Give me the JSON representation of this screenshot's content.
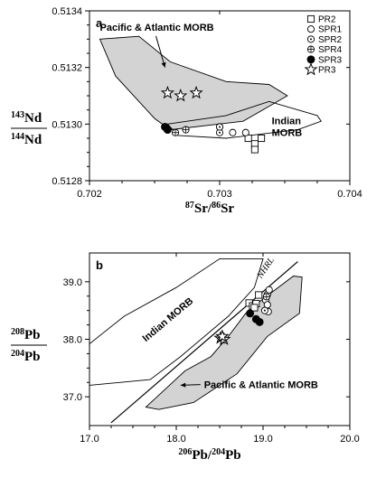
{
  "chart_data": [
    {
      "type": "scatter",
      "panel": "a",
      "xlabel": {
        "pre": "87",
        "main": "Sr/",
        "pre2": "86",
        "main2": "Sr"
      },
      "ylabel": {
        "num_pre": "143",
        "num": "Nd",
        "den_pre": "144",
        "den": "Nd"
      },
      "xlim": [
        0.702,
        0.704
      ],
      "ylim": [
        0.5128,
        0.5134
      ],
      "x_ticks": [
        "0.702",
        "0.703",
        "0.704"
      ],
      "x_tick_values": [
        0.702,
        0.703,
        0.704
      ],
      "y_ticks": [
        "0.5128",
        "0.5130",
        "0.5132",
        "0.5134"
      ],
      "y_tick_values": [
        0.5128,
        0.513,
        0.5132,
        0.5134
      ],
      "legend": [
        {
          "name": "PR2",
          "marker": "square"
        },
        {
          "name": "SPR1",
          "marker": "circle"
        },
        {
          "name": "SPR2",
          "marker": "circle-dot"
        },
        {
          "name": "SPR4",
          "marker": "circle-plus"
        },
        {
          "name": "SPR3",
          "marker": "filled-circle"
        },
        {
          "name": "PR3",
          "marker": "star"
        }
      ],
      "series": [
        {
          "name": "PR2",
          "marker": "square",
          "points": [
            [
              0.70322,
              0.51295
            ],
            [
              0.70327,
              0.51293
            ],
            [
              0.70332,
              0.51295
            ],
            [
              0.70327,
              0.51291
            ]
          ]
        },
        {
          "name": "SPR1",
          "marker": "circle",
          "points": [
            [
              0.703,
              0.51299
            ],
            [
              0.7031,
              0.51297
            ],
            [
              0.7032,
              0.51297
            ]
          ]
        },
        {
          "name": "SPR2",
          "marker": "circle-dot",
          "points": [
            [
              0.703,
              0.51297
            ],
            [
              0.703,
              0.51299
            ]
          ]
        },
        {
          "name": "SPR4",
          "marker": "circle-plus",
          "points": [
            [
              0.70266,
              0.51297
            ],
            [
              0.70274,
              0.51298
            ]
          ]
        },
        {
          "name": "SPR3",
          "marker": "filled-circle",
          "points": [
            [
              0.70258,
              0.51299
            ],
            [
              0.7026,
              0.51298
            ]
          ]
        },
        {
          "name": "PR3",
          "marker": "star",
          "points": [
            [
              0.7026,
              0.51311
            ],
            [
              0.7027,
              0.5131
            ],
            [
              0.70282,
              0.51311
            ]
          ]
        }
      ],
      "regions": [
        {
          "name": "Pacific & Atlantic MORB",
          "fill": "#d3d3d3",
          "points": [
            [
              0.70208,
              0.5133
            ],
            [
              0.70238,
              0.51331
            ],
            [
              0.70262,
              0.51322
            ],
            [
              0.70305,
              0.51315
            ],
            [
              0.70338,
              0.51314
            ],
            [
              0.70352,
              0.5131
            ],
            [
              0.70318,
              0.51301
            ],
            [
              0.70262,
              0.51298
            ],
            [
              0.7025,
              0.51302
            ],
            [
              0.7022,
              0.51317
            ]
          ]
        },
        {
          "name": "Indian MORB",
          "fill": "none",
          "points": [
            [
              0.7026,
              0.513
            ],
            [
              0.70305,
              0.51303
            ],
            [
              0.70338,
              0.51308
            ],
            [
              0.70375,
              0.51303
            ],
            [
              0.70378,
              0.51301
            ],
            [
              0.7036,
              0.51298
            ],
            [
              0.70305,
              0.51295
            ],
            [
              0.70268,
              0.51296
            ]
          ]
        }
      ],
      "annotations": [
        {
          "text": "Pacific & Atlantic MORB",
          "at": [
            0.70208,
            0.51333
          ],
          "arrow_to": [
            0.70258,
            0.5132
          ]
        },
        {
          "text": "Indian MORB",
          "lines": [
            "Indian",
            "MORB"
          ],
          "at": [
            0.7034,
            0.513
          ]
        }
      ]
    },
    {
      "type": "scatter",
      "panel": "b",
      "xlabel": {
        "pre": "206",
        "main": "Pb/",
        "pre2": "204",
        "main2": "Pb"
      },
      "ylabel": {
        "num_pre": "208",
        "num": "Pb",
        "den_pre": "204",
        "den": "Pb"
      },
      "xlim": [
        17.0,
        20.0
      ],
      "ylim": [
        36.5,
        39.5
      ],
      "x_ticks": [
        "17.0",
        "18.0",
        "19.0",
        "20.0"
      ],
      "x_tick_values": [
        17.0,
        18.0,
        19.0,
        20.0
      ],
      "y_ticks": [
        "37.0",
        "38.0",
        "39.0"
      ],
      "y_tick_values": [
        37.0,
        38.0,
        39.0
      ],
      "series": [
        {
          "name": "PR2",
          "marker": "square",
          "points": [
            [
              18.84,
              38.63
            ],
            [
              18.88,
              38.58
            ],
            [
              18.92,
              38.62
            ],
            [
              18.9,
              38.55
            ],
            [
              18.95,
              38.77
            ]
          ]
        },
        {
          "name": "SPR1",
          "marker": "circle",
          "points": [
            [
              19.05,
              38.78
            ],
            [
              19.07,
              38.86
            ],
            [
              19.03,
              38.68
            ],
            [
              19.05,
              38.6
            ],
            [
              19.06,
              38.48
            ]
          ]
        },
        {
          "name": "SPR2",
          "marker": "circle-dot",
          "points": [
            [
              19.02,
              38.5
            ]
          ]
        },
        {
          "name": "SPR4",
          "marker": "circle-plus",
          "points": [
            [
              19.04,
              38.74
            ]
          ]
        },
        {
          "name": "SPR3",
          "marker": "filled-circle",
          "points": [
            [
              18.85,
              38.45
            ],
            [
              18.92,
              38.35
            ],
            [
              18.96,
              38.3
            ]
          ]
        },
        {
          "name": "PR3",
          "marker": "star",
          "points": [
            [
              18.51,
              38.02
            ],
            [
              18.55,
              38.0
            ],
            [
              18.53,
              38.05
            ]
          ]
        }
      ],
      "regions": [
        {
          "name": "Pacific & Atlantic MORB",
          "fill": "#d3d3d3",
          "points": [
            [
              17.65,
              36.82
            ],
            [
              17.85,
              37.1
            ],
            [
              18.1,
              37.45
            ],
            [
              18.4,
              37.7
            ],
            [
              18.6,
              38.05
            ],
            [
              18.8,
              38.45
            ],
            [
              19.0,
              38.7
            ],
            [
              19.35,
              39.1
            ],
            [
              19.45,
              39.08
            ],
            [
              19.42,
              38.45
            ],
            [
              19.05,
              38.05
            ],
            [
              18.7,
              37.4
            ],
            [
              18.2,
              36.9
            ],
            [
              17.8,
              36.78
            ]
          ]
        },
        {
          "name": "Indian MORB",
          "fill": "none",
          "points": [
            [
              16.75,
              37.4
            ],
            [
              16.9,
              37.8
            ],
            [
              17.4,
              38.4
            ],
            [
              18.0,
              38.9
            ],
            [
              18.5,
              39.4
            ],
            [
              19.0,
              39.4
            ],
            [
              18.9,
              38.9
            ],
            [
              18.6,
              38.4
            ],
            [
              18.05,
              37.7
            ],
            [
              17.7,
              37.3
            ],
            [
              17.0,
              37.2
            ]
          ]
        }
      ],
      "reference_line": {
        "name": "NHRL",
        "points": [
          [
            17.25,
            36.55
          ],
          [
            19.4,
            39.35
          ]
        ]
      },
      "annotations": [
        {
          "text": "Indian MORB",
          "at": [
            17.65,
            37.95
          ],
          "rotation_deg": -40
        },
        {
          "text": "Pacific & Atlantic MORB",
          "at": [
            18.32,
            37.15
          ],
          "arrow_to": [
            18.05,
            37.2
          ]
        },
        {
          "text": "NHRL",
          "at": [
            18.98,
            39.05
          ],
          "rotation_deg": -56
        }
      ]
    }
  ]
}
